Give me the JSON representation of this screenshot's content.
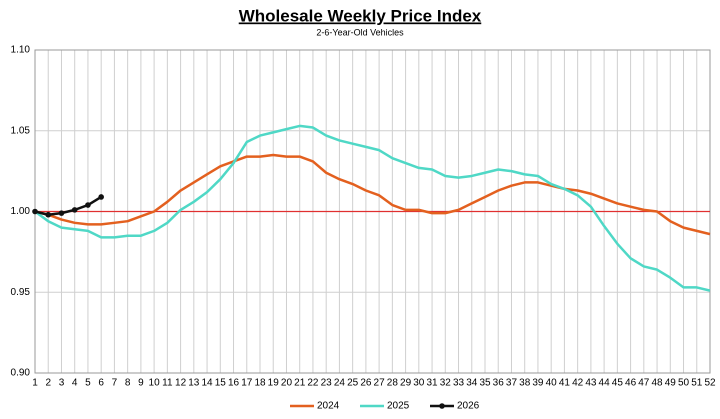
{
  "chart_data": {
    "type": "line",
    "title": "Wholesale Weekly Price Index",
    "subtitle": "2-6-Year-Old Vehicles",
    "categories": [
      1,
      2,
      3,
      4,
      5,
      6,
      7,
      8,
      9,
      10,
      11,
      12,
      13,
      14,
      15,
      16,
      17,
      18,
      19,
      20,
      21,
      22,
      23,
      24,
      25,
      26,
      27,
      28,
      29,
      30,
      31,
      32,
      33,
      34,
      35,
      36,
      37,
      38,
      39,
      40,
      41,
      42,
      43,
      44,
      45,
      46,
      47,
      48,
      49,
      50,
      51,
      52
    ],
    "series": [
      {
        "name": "2024",
        "color": "#e3601f",
        "markers": false,
        "values": [
          1.0,
          0.998,
          0.995,
          0.993,
          0.992,
          0.992,
          0.993,
          0.994,
          0.997,
          1.0,
          1.006,
          1.013,
          1.018,
          1.023,
          1.028,
          1.031,
          1.034,
          1.034,
          1.035,
          1.034,
          1.034,
          1.031,
          1.024,
          1.02,
          1.017,
          1.013,
          1.01,
          1.004,
          1.001,
          1.001,
          0.999,
          0.999,
          1.001,
          1.005,
          1.009,
          1.013,
          1.016,
          1.018,
          1.018,
          1.016,
          1.014,
          1.013,
          1.011,
          1.008,
          1.005,
          1.003,
          1.001,
          1.0,
          0.994,
          0.99,
          0.988,
          0.986
        ]
      },
      {
        "name": "2025",
        "color": "#4fd8c6",
        "markers": false,
        "values": [
          1.0,
          0.994,
          0.99,
          0.989,
          0.988,
          0.984,
          0.984,
          0.985,
          0.985,
          0.988,
          0.993,
          1.001,
          1.006,
          1.012,
          1.02,
          1.03,
          1.043,
          1.047,
          1.049,
          1.051,
          1.053,
          1.052,
          1.047,
          1.044,
          1.042,
          1.04,
          1.038,
          1.033,
          1.03,
          1.027,
          1.026,
          1.022,
          1.021,
          1.022,
          1.024,
          1.026,
          1.025,
          1.023,
          1.022,
          1.017,
          1.014,
          1.01,
          1.003,
          0.991,
          0.98,
          0.971,
          0.966,
          0.964,
          0.959,
          0.953,
          0.953,
          0.951
        ]
      },
      {
        "name": "2026",
        "color": "#111111",
        "markers": true,
        "values": [
          1.0,
          0.998,
          0.999,
          1.001,
          1.004,
          1.009,
          null,
          null,
          null,
          null,
          null,
          null,
          null,
          null,
          null,
          null,
          null,
          null,
          null,
          null,
          null,
          null,
          null,
          null,
          null,
          null,
          null,
          null,
          null,
          null,
          null,
          null,
          null,
          null,
          null,
          null,
          null,
          null,
          null,
          null,
          null,
          null,
          null,
          null,
          null,
          null,
          null,
          null,
          null,
          null,
          null,
          null
        ]
      }
    ],
    "ylim": [
      0.9,
      1.1
    ],
    "yticks": [
      {
        "value": 0.9,
        "label": "0.90"
      },
      0.95,
      {
        "value": 1.0,
        "label": "1.00"
      },
      1.05,
      {
        "value": 1.1,
        "label": "1.10"
      }
    ],
    "reference_line": {
      "value": 1.0,
      "color": "#e03030"
    },
    "grid": true,
    "legend": "bottom"
  }
}
